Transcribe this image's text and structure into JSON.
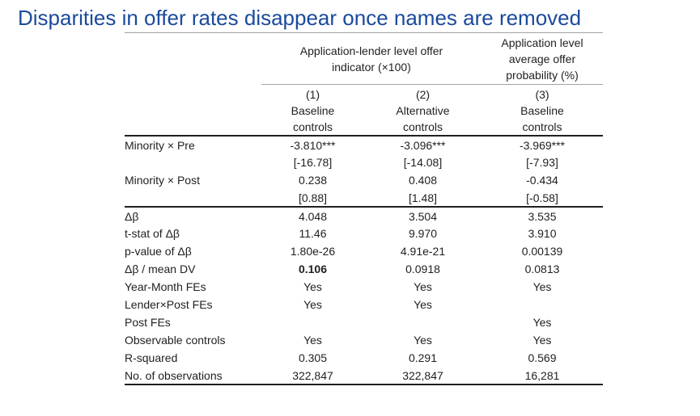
{
  "slide": {
    "title": "Disparities in offer rates disappear once names are removed"
  },
  "colors": {
    "title-blue": "#1a4a9c",
    "line-gray": "#a3a3a3",
    "line-black": "#1f1f1f",
    "text": "#1f1f1f"
  },
  "table": {
    "group_headers": [
      {
        "label": "Application-lender level offer indicator (×100)",
        "spans_columns": [
          1,
          2
        ]
      },
      {
        "label": "Application level average offer probability (%)",
        "spans_columns": [
          3
        ]
      }
    ],
    "column_headers": [
      {
        "number": "(1)",
        "name": "Baseline controls"
      },
      {
        "number": "(2)",
        "name": "Alternative controls"
      },
      {
        "number": "(3)",
        "name": "Baseline controls"
      }
    ],
    "rows": [
      {
        "label": "Minority × Pre",
        "values": [
          "-3.810***",
          "-3.096***",
          "-3.969***"
        ]
      },
      {
        "label": "",
        "values": [
          "[-16.78]",
          "[-14.08]",
          "[-7.93]"
        ]
      },
      {
        "label": "Minority × Post",
        "values": [
          "0.238",
          "0.408",
          "-0.434"
        ]
      },
      {
        "label": "",
        "values": [
          "[0.88]",
          "[1.48]",
          "[-0.58]"
        ]
      },
      {
        "label": "Δβ",
        "values": [
          "4.048",
          "3.504",
          "3.535"
        ]
      },
      {
        "label": "t-stat of Δβ",
        "values": [
          "11.46",
          "9.970",
          "3.910"
        ]
      },
      {
        "label": "p-value of Δβ",
        "values": [
          "1.80e-26",
          "4.91e-21",
          "0.00139"
        ]
      },
      {
        "label": "Δβ / mean DV",
        "values": [
          "0.106",
          "0.0918",
          "0.0813"
        ],
        "bold_value_index": 0
      },
      {
        "label": "Year-Month FEs",
        "values": [
          "Yes",
          "Yes",
          "Yes"
        ]
      },
      {
        "label": "Lender×Post FEs",
        "values": [
          "Yes",
          "Yes",
          ""
        ]
      },
      {
        "label": "Post FEs",
        "values": [
          "",
          "",
          "Yes"
        ]
      },
      {
        "label": "Observable controls",
        "values": [
          "Yes",
          "Yes",
          "Yes"
        ]
      },
      {
        "label": "R-squared",
        "values": [
          "0.305",
          "0.291",
          "0.569"
        ]
      },
      {
        "label": "No. of observations",
        "values": [
          "322,847",
          "322,847",
          "16,281"
        ]
      }
    ]
  }
}
